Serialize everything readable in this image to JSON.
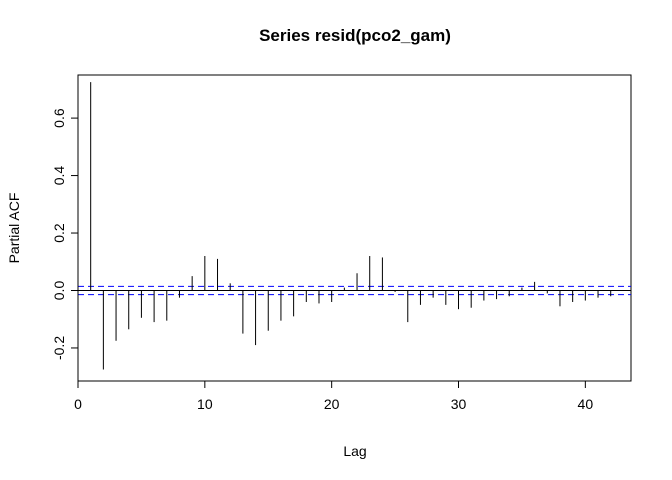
{
  "chart_data": {
    "type": "bar",
    "title": "Series  resid(pco2_gam)",
    "xlabel": "Lag",
    "ylabel": "Partial ACF",
    "xlim": [
      0,
      43.6
    ],
    "ylim": [
      -0.315,
      0.75
    ],
    "x_ticks": [
      0,
      10,
      20,
      30,
      40
    ],
    "x_tick_labels": [
      "0",
      "10",
      "20",
      "30",
      "40"
    ],
    "y_ticks": [
      -0.2,
      0.0,
      0.2,
      0.4,
      0.6
    ],
    "y_tick_labels": [
      "-0.2",
      "0.0",
      "0.2",
      "0.4",
      "0.6"
    ],
    "confidence_bound": 0.0145,
    "confidence_color": "#0000ff",
    "lags": [
      1,
      2,
      3,
      4,
      5,
      6,
      7,
      8,
      9,
      10,
      11,
      12,
      13,
      14,
      15,
      16,
      17,
      18,
      19,
      20,
      21,
      22,
      23,
      24,
      25,
      26,
      27,
      28,
      29,
      30,
      31,
      32,
      33,
      34,
      35,
      36,
      37,
      38,
      39,
      40,
      41,
      42
    ],
    "values": [
      0.725,
      -0.275,
      -0.175,
      -0.135,
      -0.095,
      -0.11,
      -0.105,
      -0.025,
      0.05,
      0.12,
      0.11,
      0.025,
      -0.15,
      -0.19,
      -0.14,
      -0.105,
      -0.09,
      -0.04,
      -0.045,
      -0.04,
      0.01,
      0.06,
      0.12,
      0.115,
      -0.005,
      -0.11,
      -0.05,
      -0.025,
      -0.05,
      -0.065,
      -0.06,
      -0.035,
      -0.03,
      -0.02,
      0.01,
      0.03,
      -0.01,
      -0.055,
      -0.04,
      -0.035,
      -0.025,
      -0.02
    ]
  }
}
